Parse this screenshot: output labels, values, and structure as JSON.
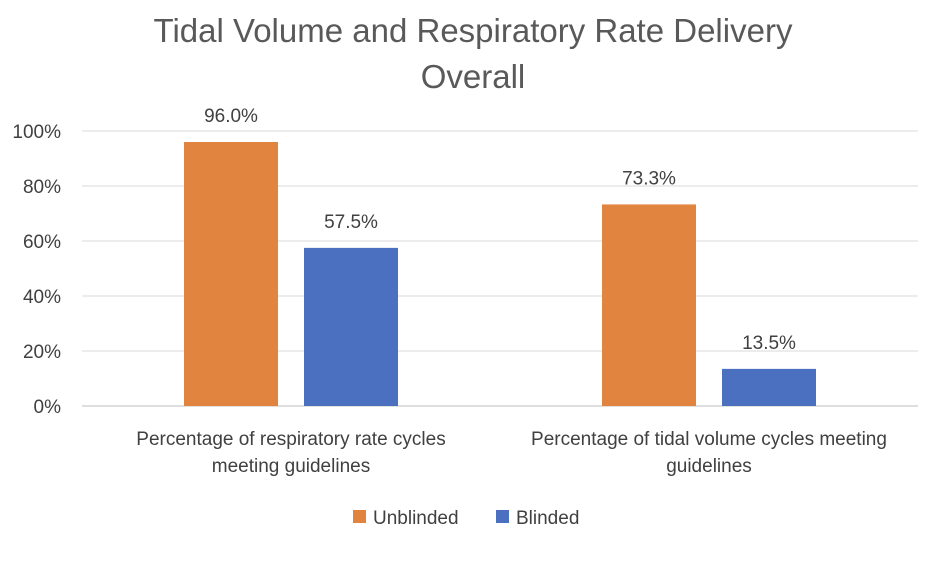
{
  "chart_data": {
    "type": "bar",
    "title": "Tidal Volume and Respiratory Rate Delivery Overall",
    "title_lines": [
      "Tidal Volume and Respiratory Rate Delivery",
      "Overall"
    ],
    "xlabel": "",
    "ylabel": "",
    "ylim": [
      0,
      100
    ],
    "y_ticks": [
      0,
      20,
      40,
      60,
      80,
      100
    ],
    "y_tick_labels": [
      "0%",
      "20%",
      "40%",
      "60%",
      "80%",
      "100%"
    ],
    "grid": true,
    "legend_position": "bottom",
    "categories": [
      "Percentage of respiratory rate cycles meeting guidelines",
      "Percentage of tidal volume cycles meeting guidelines"
    ],
    "category_label_lines": [
      [
        "Percentage of respiratory rate cycles",
        "meeting guidelines"
      ],
      [
        "Percentage of tidal volume cycles meeting",
        "guidelines"
      ]
    ],
    "series": [
      {
        "name": "Unblinded",
        "color": "#E0843F",
        "values": [
          96.0,
          73.3
        ],
        "data_labels": [
          "96.0%",
          "73.3%"
        ]
      },
      {
        "name": "Blinded",
        "color": "#4A70BF",
        "values": [
          57.5,
          13.5
        ],
        "data_labels": [
          "57.5%",
          "13.5%"
        ]
      }
    ],
    "colors": {
      "grid": "#D9D9D9",
      "axis": "#BFBFBF",
      "text": "#404040",
      "title": "#595959"
    }
  }
}
